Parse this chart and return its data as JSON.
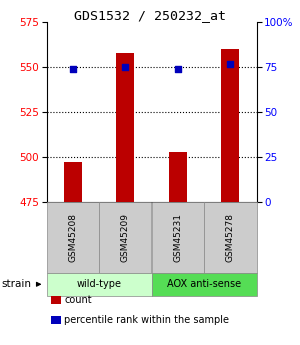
{
  "title": "GDS1532 / 250232_at",
  "samples": [
    "GSM45208",
    "GSM45209",
    "GSM45231",
    "GSM45278"
  ],
  "counts": [
    497,
    558,
    503,
    560
  ],
  "percentiles": [
    74,
    75,
    74,
    77
  ],
  "ylim_left": [
    475,
    575
  ],
  "ylim_right": [
    0,
    100
  ],
  "yticks_left": [
    475,
    500,
    525,
    550,
    575
  ],
  "yticks_right": [
    0,
    25,
    50,
    75,
    100
  ],
  "ytick_labels_right": [
    "0",
    "25",
    "50",
    "75",
    "100%"
  ],
  "groups": [
    {
      "label": "wild-type",
      "indices": [
        0,
        1
      ],
      "color": "#ccffcc"
    },
    {
      "label": "AOX anti-sense",
      "indices": [
        2,
        3
      ],
      "color": "#55dd55"
    }
  ],
  "bar_color": "#bb0000",
  "dot_color": "#0000bb",
  "bar_width": 0.35,
  "strain_label": "strain",
  "legend_items": [
    {
      "color": "#bb0000",
      "label": "count"
    },
    {
      "color": "#0000bb",
      "label": "percentile rank within the sample"
    }
  ],
  "background_color": "#ffffff"
}
